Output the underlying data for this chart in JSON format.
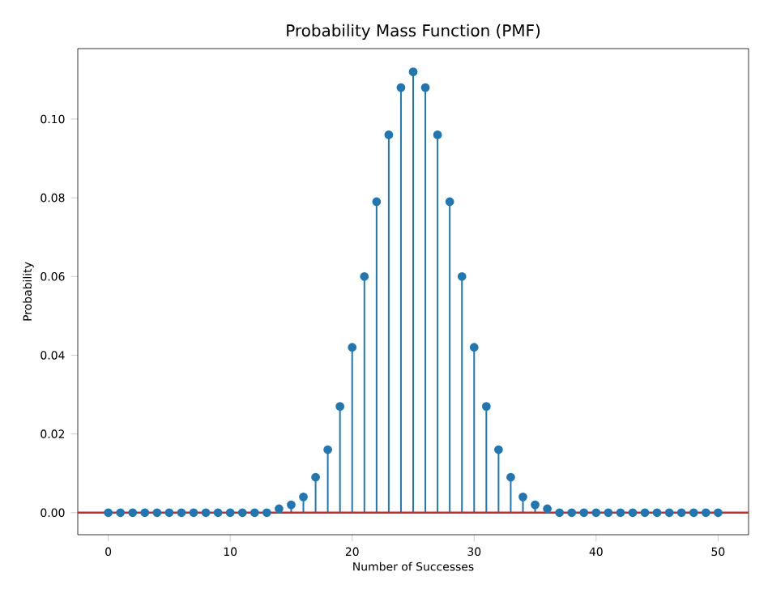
{
  "chart_data": {
    "type": "lollipop",
    "title": "Probability Mass Function (PMF)",
    "xlabel": "Number of Successes",
    "ylabel": "Probability",
    "x": [
      0,
      1,
      2,
      3,
      4,
      5,
      6,
      7,
      8,
      9,
      10,
      11,
      12,
      13,
      14,
      15,
      16,
      17,
      18,
      19,
      20,
      21,
      22,
      23,
      24,
      25,
      26,
      27,
      28,
      29,
      30,
      31,
      32,
      33,
      34,
      35,
      36,
      37,
      38,
      39,
      40,
      41,
      42,
      43,
      44,
      45,
      46,
      47,
      48,
      49,
      50
    ],
    "values": [
      0,
      0,
      0,
      0,
      0,
      0,
      0,
      0,
      0,
      0,
      0,
      0,
      0,
      0,
      0.001,
      0.002,
      0.004,
      0.009,
      0.016,
      0.027,
      0.042,
      0.06,
      0.079,
      0.096,
      0.108,
      0.112,
      0.108,
      0.096,
      0.079,
      0.06,
      0.042,
      0.027,
      0.016,
      0.009,
      0.004,
      0.002,
      0.001,
      0,
      0,
      0,
      0,
      0,
      0,
      0,
      0,
      0,
      0,
      0,
      0,
      0,
      0
    ],
    "color": "#1f77b4",
    "marker": "circle",
    "xlim": [
      -2.5,
      52.5
    ],
    "xticks": [
      0,
      10,
      20,
      30,
      40,
      50
    ],
    "ylim": [
      -0.0056,
      0.1179
    ],
    "yticks": [
      {
        "value": 0,
        "label": "0.00"
      },
      {
        "value": 0.02,
        "label": "0.02"
      },
      {
        "value": 0.04,
        "label": "0.04"
      },
      {
        "value": 0.06,
        "label": "0.06"
      },
      {
        "value": 0.08,
        "label": "0.08"
      },
      {
        "value": 0.1,
        "label": "0.10"
      }
    ],
    "ref_lines": [
      {
        "axis": "y",
        "value": 0,
        "color": "#d62728"
      }
    ]
  }
}
